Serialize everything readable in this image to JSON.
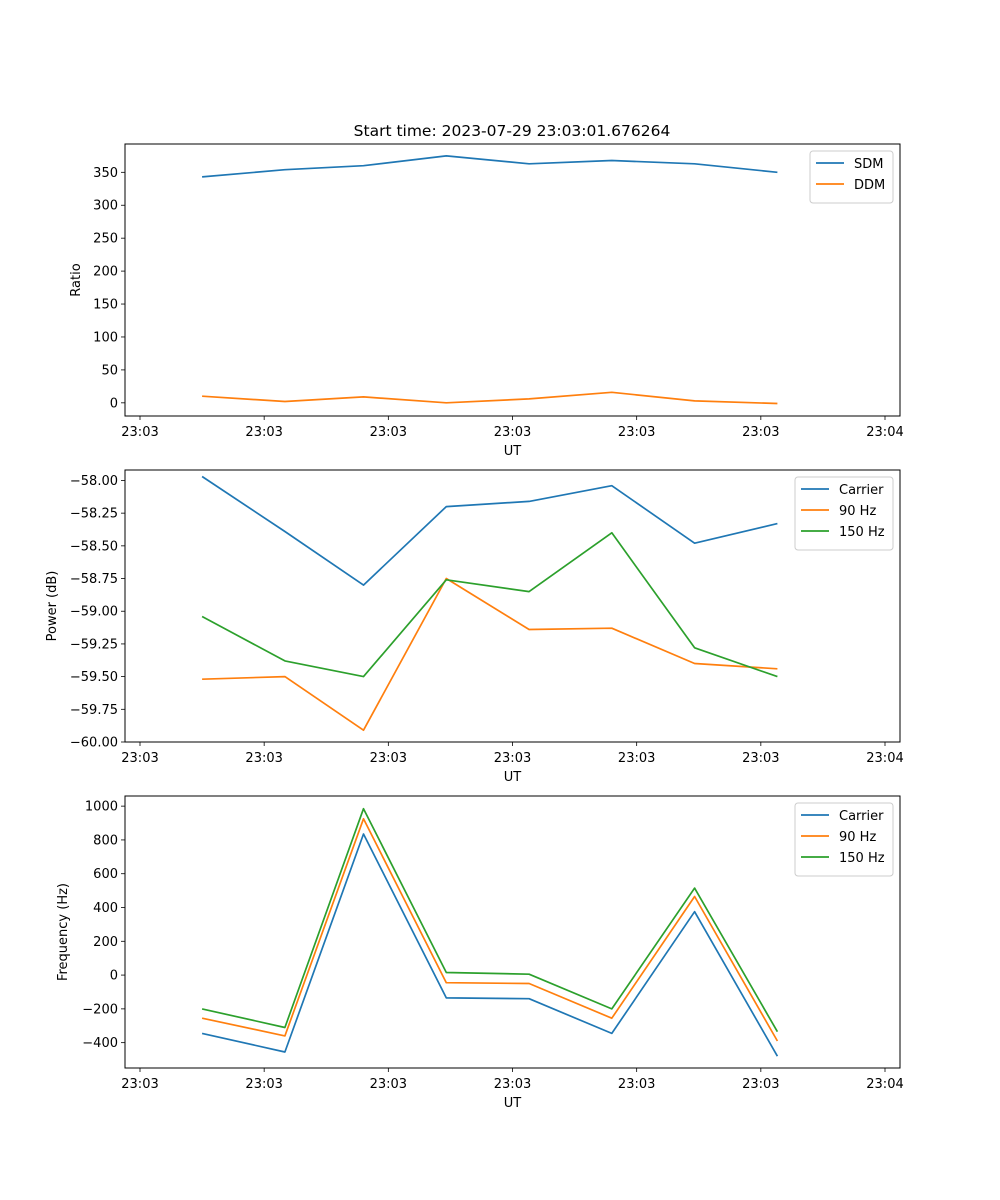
{
  "title": "Start time: 2023-07-29 23:03:01.676264",
  "colors": {
    "c0": "#1f77b4",
    "c1": "#ff7f0e",
    "c2": "#2ca02c"
  },
  "chart_data": [
    {
      "type": "line",
      "xlabel": "UT",
      "ylabel": "Ratio",
      "xlim": [
        0,
        9
      ],
      "x": [
        0.75,
        1.75,
        2.7,
        3.7,
        4.7,
        5.7,
        6.7,
        7.7
      ],
      "xticks": [
        {
          "value": 0,
          "label": "23:03"
        },
        {
          "value": 1.5,
          "label": "23:03"
        },
        {
          "value": 3,
          "label": "23:03"
        },
        {
          "value": 4.5,
          "label": "23:03"
        },
        {
          "value": 6,
          "label": "23:03"
        },
        {
          "value": 7.5,
          "label": "23:03"
        },
        {
          "value": 9,
          "label": "23:04"
        }
      ],
      "ylim": [
        -20,
        393
      ],
      "yticks": [
        {
          "value": 0,
          "label": "0"
        },
        {
          "value": 50,
          "label": "50"
        },
        {
          "value": 100,
          "label": "100"
        },
        {
          "value": 150,
          "label": "150"
        },
        {
          "value": 200,
          "label": "200"
        },
        {
          "value": 250,
          "label": "250"
        },
        {
          "value": 300,
          "label": "300"
        },
        {
          "value": 350,
          "label": "350"
        }
      ],
      "legend": "top-right",
      "series": [
        {
          "name": "SDM",
          "color": "#1f77b4",
          "values": [
            343,
            354,
            360,
            375,
            363,
            368,
            363,
            350
          ]
        },
        {
          "name": "DDM",
          "color": "#ff7f0e",
          "values": [
            10,
            2,
            9,
            0,
            6,
            16,
            3,
            -1
          ]
        }
      ]
    },
    {
      "type": "line",
      "xlabel": "UT",
      "ylabel": "Power (dB)",
      "xlim": [
        0,
        9
      ],
      "x": [
        0.75,
        1.75,
        2.7,
        3.7,
        4.7,
        5.7,
        6.7,
        7.7
      ],
      "xticks": [
        {
          "value": 0,
          "label": "23:03"
        },
        {
          "value": 1.5,
          "label": "23:03"
        },
        {
          "value": 3,
          "label": "23:03"
        },
        {
          "value": 4.5,
          "label": "23:03"
        },
        {
          "value": 6,
          "label": "23:03"
        },
        {
          "value": 7.5,
          "label": "23:03"
        },
        {
          "value": 9,
          "label": "23:04"
        }
      ],
      "ylim": [
        -60.0,
        -57.92
      ],
      "yticks": [
        {
          "value": -58.0,
          "label": "−58.00"
        },
        {
          "value": -58.25,
          "label": "−58.25"
        },
        {
          "value": -58.5,
          "label": "−58.50"
        },
        {
          "value": -58.75,
          "label": "−58.75"
        },
        {
          "value": -59.0,
          "label": "−59.00"
        },
        {
          "value": -59.25,
          "label": "−59.25"
        },
        {
          "value": -59.5,
          "label": "−59.50"
        },
        {
          "value": -59.75,
          "label": "−59.75"
        },
        {
          "value": -60.0,
          "label": "−60.00"
        }
      ],
      "legend": "top-right",
      "series": [
        {
          "name": "Carrier",
          "color": "#1f77b4",
          "values": [
            -57.97,
            -58.39,
            -58.8,
            -58.2,
            -58.16,
            -58.04,
            -58.48,
            -58.33
          ]
        },
        {
          "name": "90 Hz",
          "color": "#ff7f0e",
          "values": [
            -59.52,
            -59.5,
            -59.91,
            -58.75,
            -59.14,
            -59.13,
            -59.4,
            -59.44
          ]
        },
        {
          "name": "150 Hz",
          "color": "#2ca02c",
          "values": [
            -59.04,
            -59.38,
            -59.5,
            -58.76,
            -58.85,
            -58.4,
            -59.28,
            -59.5
          ]
        }
      ]
    },
    {
      "type": "line",
      "xlabel": "UT",
      "ylabel": "Frequency (Hz)",
      "xlim": [
        0,
        9
      ],
      "x": [
        0.75,
        1.75,
        2.7,
        3.7,
        4.7,
        5.7,
        6.7,
        7.7
      ],
      "xticks": [
        {
          "value": 0,
          "label": "23:03"
        },
        {
          "value": 1.5,
          "label": "23:03"
        },
        {
          "value": 3,
          "label": "23:03"
        },
        {
          "value": 4.5,
          "label": "23:03"
        },
        {
          "value": 6,
          "label": "23:03"
        },
        {
          "value": 7.5,
          "label": "23:03"
        },
        {
          "value": 9,
          "label": "23:04"
        }
      ],
      "ylim": [
        -550,
        1060
      ],
      "yticks": [
        {
          "value": -400,
          "label": "−400"
        },
        {
          "value": -200,
          "label": "−200"
        },
        {
          "value": 0,
          "label": "0"
        },
        {
          "value": 200,
          "label": "200"
        },
        {
          "value": 400,
          "label": "400"
        },
        {
          "value": 600,
          "label": "600"
        },
        {
          "value": 800,
          "label": "800"
        },
        {
          "value": 1000,
          "label": "1000"
        }
      ],
      "legend": "top-right",
      "series": [
        {
          "name": "Carrier",
          "color": "#1f77b4",
          "values": [
            -345,
            -455,
            835,
            -135,
            -140,
            -345,
            375,
            -480
          ]
        },
        {
          "name": "90 Hz",
          "color": "#ff7f0e",
          "values": [
            -255,
            -360,
            925,
            -45,
            -50,
            -255,
            465,
            -390
          ]
        },
        {
          "name": "150 Hz",
          "color": "#2ca02c",
          "values": [
            -200,
            -310,
            985,
            15,
            5,
            -200,
            515,
            -335
          ]
        }
      ]
    }
  ]
}
